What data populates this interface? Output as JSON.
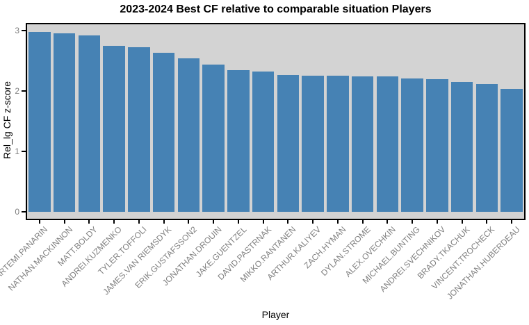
{
  "chart_data": {
    "type": "bar",
    "title": "2023-2024 Best CF relative to comparable situation Players",
    "xlabel": "Player",
    "ylabel": "Rel_lg CF z-score",
    "categories": [
      "ARTEMI.PANARIN",
      "NATHAN.MACKINNON",
      "MATT.BOLDY",
      "ANDREI.KUZMENKO",
      "TYLER.TOFFOLI",
      "JAMES.VAN RIEMSDYK",
      "ERIK.GUSTAFSSON2",
      "JONATHAN.DROUIN",
      "JAKE.GUENTZEL",
      "DAVID.PASTRNAK",
      "MIKKO.RANTANEN",
      "ARTHUR.KALIYEV",
      "ZACH.HYMAN",
      "DYLAN.STROME",
      "ALEX.OVECHKIN",
      "MICHAEL.BUNTING",
      "ANDREI.SVECHNIKOV",
      "BRADY.TKACHUK",
      "VINCENT.TROCHECK",
      "JONATHAN.HUBERDEAU"
    ],
    "values": [
      2.98,
      2.95,
      2.92,
      2.75,
      2.72,
      2.63,
      2.54,
      2.44,
      2.35,
      2.32,
      2.27,
      2.25,
      2.25,
      2.24,
      2.24,
      2.21,
      2.2,
      2.15,
      2.12,
      2.04
    ],
    "yticks": [
      0,
      1,
      2,
      3
    ],
    "ylim": [
      0,
      3.1
    ],
    "grid": false,
    "legend": "none",
    "colors": {
      "bar": "#4682B4",
      "panel_background": "#D3D3D3",
      "panel_border": "#000000",
      "tick_label": "#7F7F7F",
      "axis_title": "#000000",
      "title": "#000000"
    }
  }
}
